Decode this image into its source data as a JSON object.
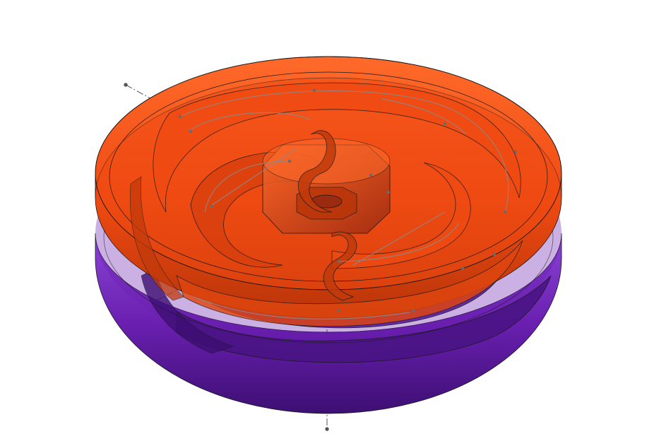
{
  "scene": {
    "subject": "cad-translucent-spiral-spring-assembly",
    "colors": {
      "background": "#ffffff",
      "top_part": "#ef4a12",
      "top_part_dark": "#b83408",
      "top_part_light": "#ff6a2a",
      "bottom_part": "#6a1fb0",
      "bottom_part_dark": "#3d0f73",
      "bottom_part_light": "#8a45d6",
      "inner_floor": "#dfe3ec",
      "edge_lines": "#1a1a1a",
      "sketch_lines": "#7a7a7a",
      "axis_line": "#555555"
    }
  }
}
